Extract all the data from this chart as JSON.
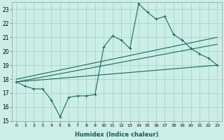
{
  "xlabel": "Humidex (Indice chaleur)",
  "bg_color": "#cceee8",
  "grid_color": "#aad4cc",
  "line_color": "#1a6b5a",
  "x_values": [
    0,
    1,
    2,
    3,
    4,
    5,
    6,
    7,
    8,
    9,
    10,
    11,
    12,
    13,
    14,
    15,
    16,
    17,
    18,
    19,
    20,
    21,
    22,
    23
  ],
  "y_main": [
    17.8,
    17.5,
    17.3,
    17.3,
    16.5,
    15.3,
    16.7,
    16.8,
    16.8,
    16.9,
    20.3,
    21.1,
    20.8,
    20.2,
    23.4,
    22.8,
    22.3,
    22.5,
    21.2,
    20.8,
    20.2,
    19.8,
    19.5,
    19.0
  ],
  "ylim": [
    15,
    23.5
  ],
  "yticks": [
    15,
    16,
    17,
    18,
    19,
    20,
    21,
    22,
    23
  ],
  "xlim": [
    -0.5,
    23.5
  ],
  "trend1_start_y": 17.8,
  "trend1_end_y": 19.0,
  "trend2_start_y": 17.8,
  "trend2_end_y": 20.5,
  "trend3_start_y": 18.0,
  "trend3_end_y": 21.0
}
